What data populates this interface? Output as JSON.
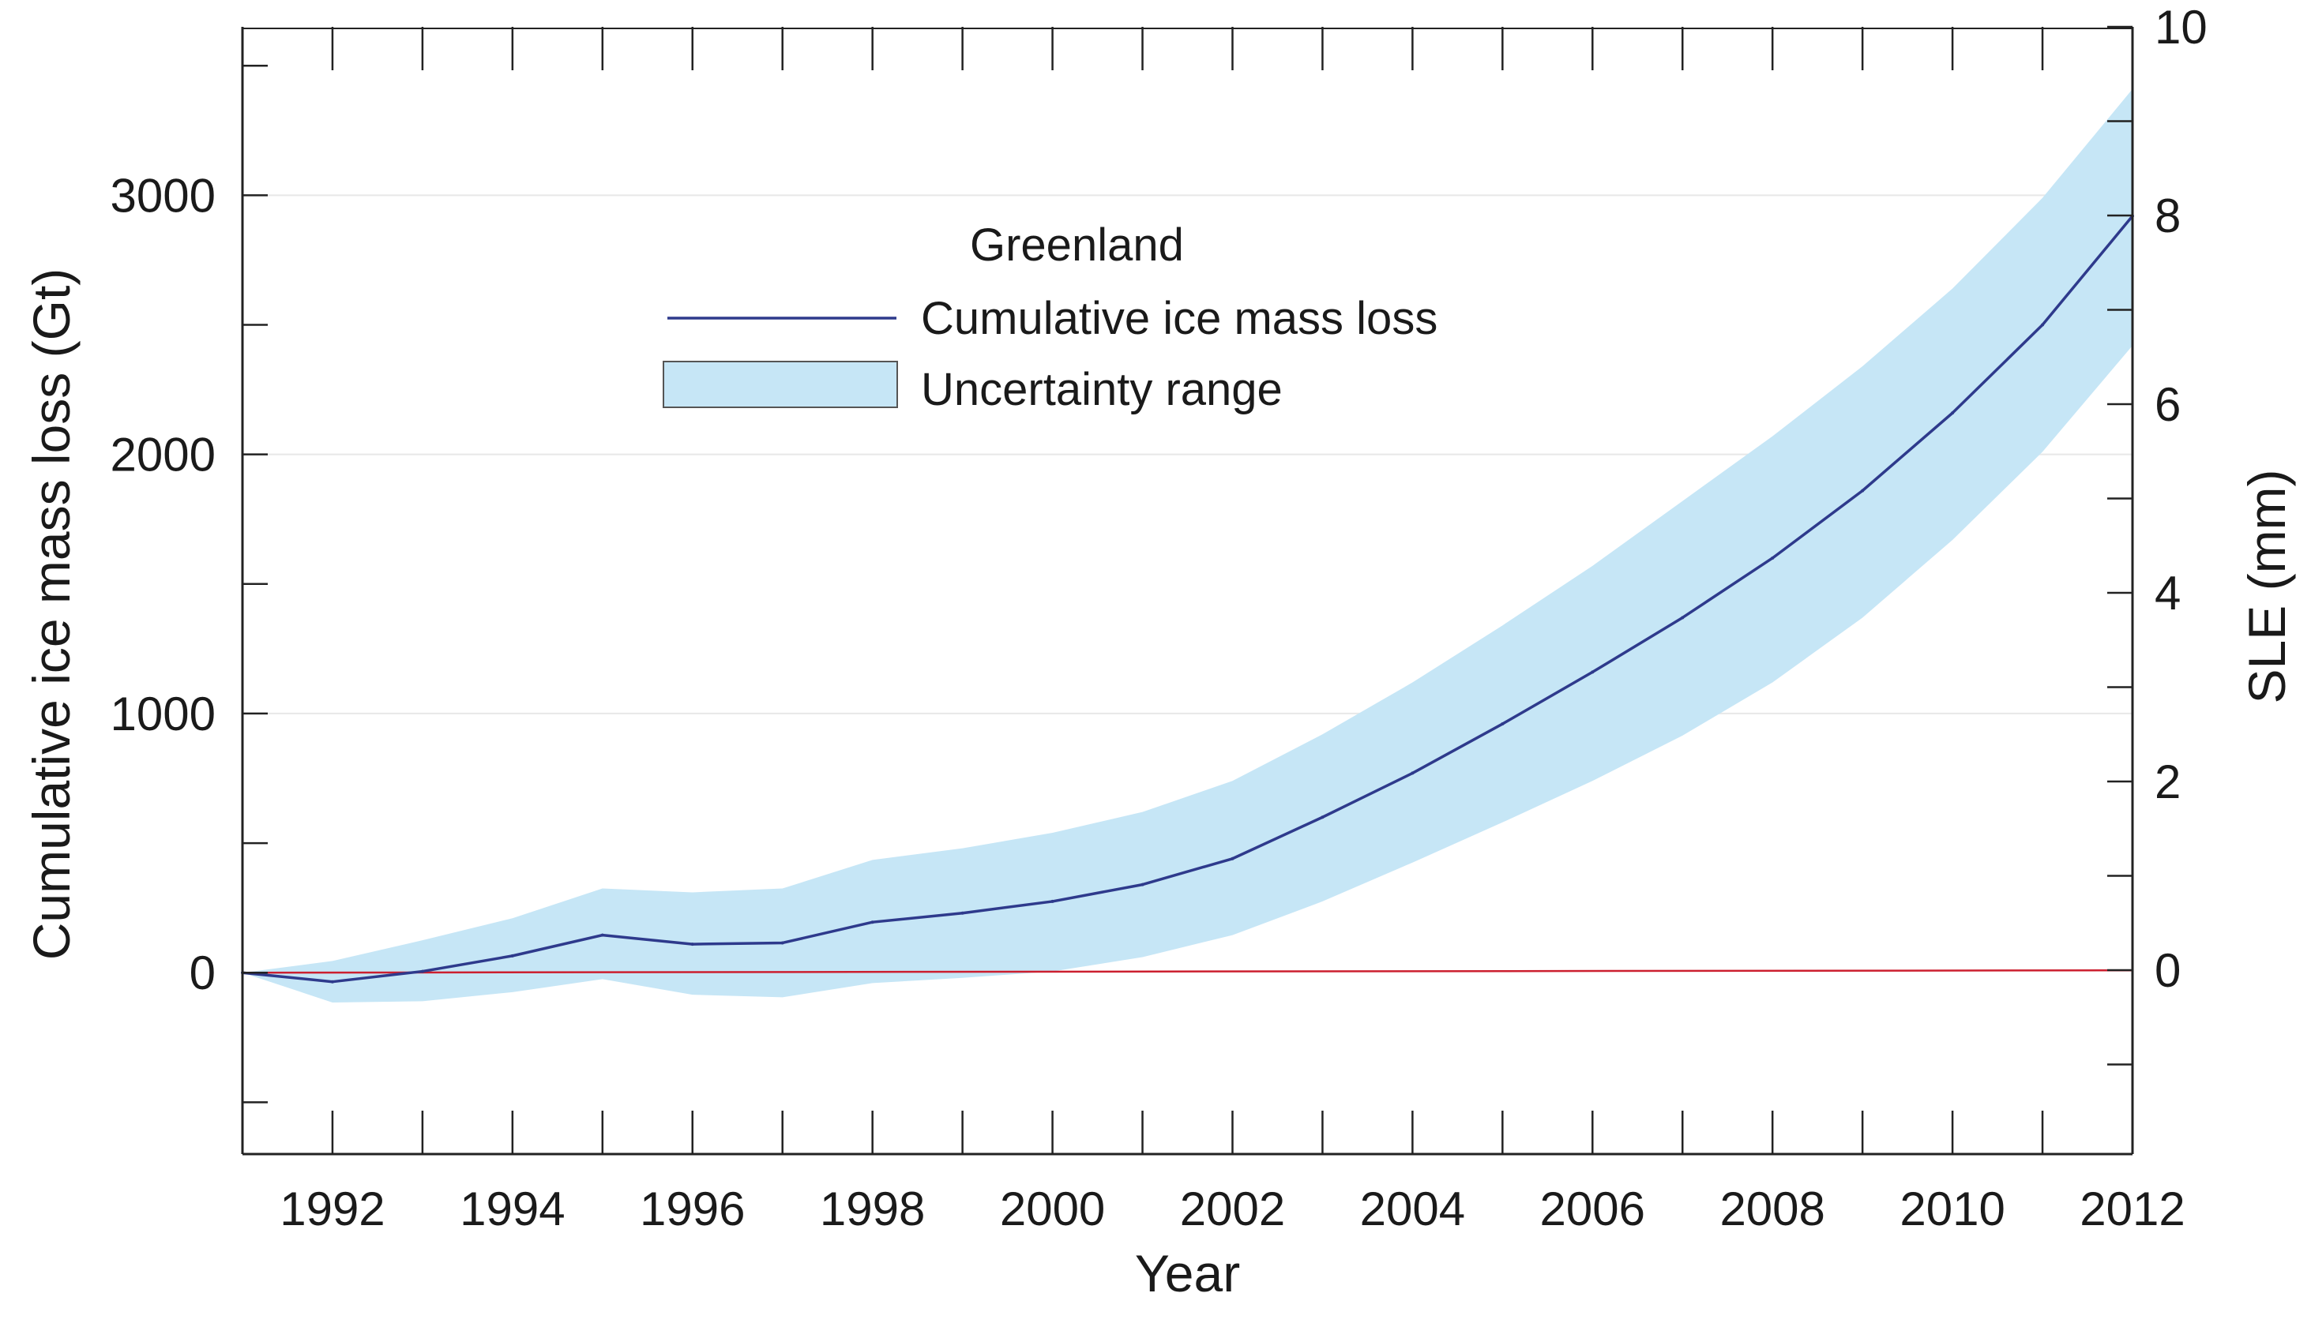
{
  "chart_data": {
    "type": "line",
    "title": "",
    "xlabel": "Year",
    "ylabel": "Cumulative ice mass loss (Gt)",
    "ylabel_right": "SLE (mm)",
    "xlim": [
      1991,
      2012
    ],
    "ylim": [
      -700,
      3650
    ],
    "ylim_right": [
      -1.95,
      10
    ],
    "x_ticks": [
      1992,
      1994,
      1996,
      1998,
      2000,
      2002,
      2004,
      2006,
      2008,
      2010,
      2012
    ],
    "x_tick_labels": [
      "1992",
      "1994",
      "1996",
      "1998",
      "2000",
      "2002",
      "2004",
      "2006",
      "2008",
      "2010",
      "2012"
    ],
    "y_ticks": [
      0,
      1000,
      2000,
      3000
    ],
    "y_tick_labels": [
      "0",
      "1000",
      "2000",
      "3000"
    ],
    "y_right_ticks": [
      0,
      2,
      4,
      6,
      8,
      10
    ],
    "y_right_tick_labels": [
      "0",
      "2",
      "4",
      "6",
      "8",
      "10"
    ],
    "grid": "horizontal at left major ticks",
    "legend": {
      "title": "Greenland",
      "placement": "top-center",
      "line_label": "Cumulative ice mass loss",
      "band_label": "Uncertainty range"
    },
    "reference_line": {
      "color": "#cc1f2f"
    },
    "x": [
      1991,
      1992,
      1993,
      1994,
      1995,
      1996,
      1997,
      1998,
      1999,
      2000,
      2001,
      2002,
      2003,
      2004,
      2005,
      2006,
      2007,
      2008,
      2009,
      2010,
      2011,
      2012
    ],
    "series": [
      {
        "name": "Cumulative ice mass loss",
        "color": "#2e3a8c",
        "values": [
          0,
          -35,
          5,
          65,
          145,
          110,
          115,
          195,
          230,
          275,
          340,
          440,
          600,
          770,
          960,
          1160,
          1370,
          1600,
          1860,
          2160,
          2500,
          2920
        ]
      }
    ],
    "band": {
      "name": "Uncertainty range",
      "color": "#c6e6f6",
      "upper": [
        0,
        45,
        125,
        210,
        325,
        310,
        325,
        435,
        480,
        540,
        620,
        740,
        920,
        1120,
        1340,
        1570,
        1820,
        2070,
        2340,
        2640,
        2990,
        3410
      ],
      "lower": [
        0,
        -115,
        -110,
        -75,
        -25,
        -85,
        -95,
        -40,
        -20,
        5,
        60,
        145,
        275,
        425,
        580,
        740,
        915,
        1120,
        1370,
        1670,
        2010,
        2420
      ]
    }
  }
}
